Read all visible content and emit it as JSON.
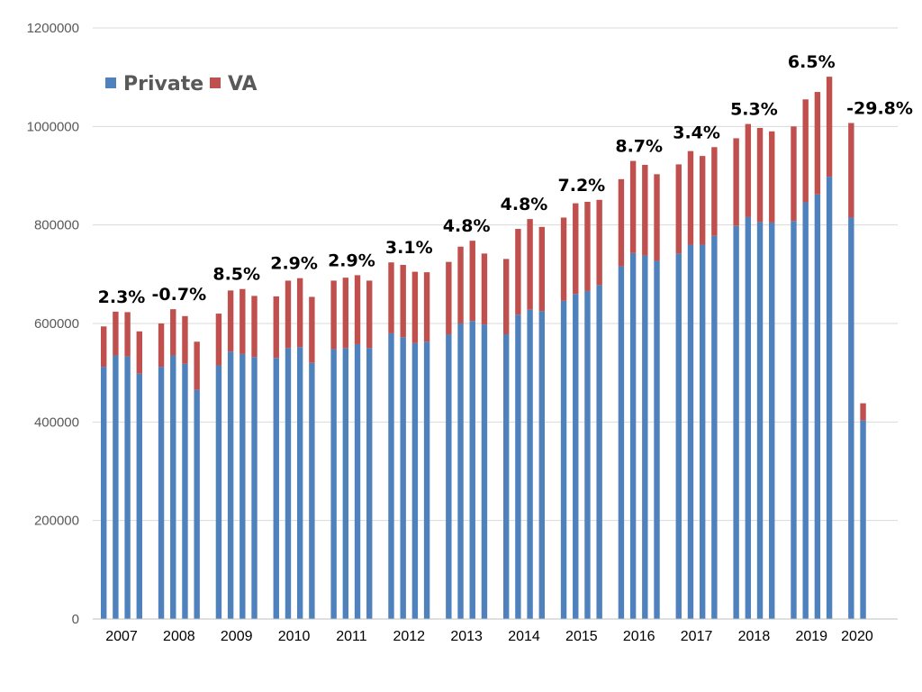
{
  "chart_data": {
    "type": "bar",
    "stacked": true,
    "title": "",
    "xlabel": "",
    "ylabel": "",
    "ylim": [
      0,
      1200000
    ],
    "yticks": [
      0,
      200000,
      400000,
      600000,
      800000,
      1000000,
      1200000
    ],
    "ytick_labels": [
      "0",
      "200000",
      "400000",
      "600000",
      "800000",
      "1000000",
      "1200000"
    ],
    "grid": true,
    "legend_position": "top-left",
    "series": [
      {
        "name": "Private",
        "color": "#4f81bd"
      },
      {
        "name": "VA",
        "color": "#c0504d"
      }
    ],
    "groups": [
      {
        "year": "2007",
        "change_label": "2.3%",
        "private": [
          512000,
          535000,
          533000,
          498000
        ],
        "va": [
          82000,
          89000,
          90000,
          86000
        ]
      },
      {
        "year": "2008",
        "change_label": "-0.7%",
        "private": [
          512000,
          535000,
          518000,
          465000
        ],
        "va": [
          88000,
          94000,
          97000,
          98000
        ]
      },
      {
        "year": "2009",
        "change_label": "8.5%",
        "private": [
          515000,
          543000,
          538000,
          532000
        ],
        "va": [
          105000,
          124000,
          132000,
          124000
        ]
      },
      {
        "year": "2010",
        "change_label": "2.9%",
        "private": [
          530000,
          550000,
          552000,
          520000
        ],
        "va": [
          125000,
          137000,
          140000,
          134000
        ]
      },
      {
        "year": "2011",
        "change_label": "2.9%",
        "private": [
          548000,
          550000,
          558000,
          550000
        ],
        "va": [
          139000,
          143000,
          140000,
          137000
        ]
      },
      {
        "year": "2012",
        "change_label": "3.1%",
        "private": [
          580000,
          572000,
          560000,
          563000
        ],
        "va": [
          144000,
          147000,
          145000,
          141000
        ]
      },
      {
        "year": "2013",
        "change_label": "4.8%",
        "private": [
          578000,
          600000,
          605000,
          598000
        ],
        "va": [
          147000,
          156000,
          163000,
          144000
        ]
      },
      {
        "year": "2014",
        "change_label": "4.8%",
        "private": [
          578000,
          618000,
          628000,
          625000
        ],
        "va": [
          153000,
          174000,
          184000,
          171000
        ]
      },
      {
        "year": "2015",
        "change_label": "7.2%",
        "private": [
          646000,
          660000,
          666000,
          678000
        ],
        "va": [
          169000,
          184000,
          181000,
          173000
        ]
      },
      {
        "year": "2016",
        "change_label": "8.7%",
        "private": [
          716000,
          743000,
          738000,
          727000
        ],
        "va": [
          177000,
          187000,
          184000,
          176000
        ]
      },
      {
        "year": "2017",
        "change_label": "3.4%",
        "private": [
          742000,
          760000,
          760000,
          778000
        ],
        "va": [
          181000,
          190000,
          180000,
          180000
        ]
      },
      {
        "year": "2018",
        "change_label": "5.3%",
        "private": [
          798000,
          816000,
          806000,
          805000
        ],
        "va": [
          178000,
          189000,
          191000,
          185000
        ]
      },
      {
        "year": "2019",
        "change_label": "6.5%",
        "private": [
          808000,
          846000,
          862000,
          898000
        ],
        "va": [
          192000,
          209000,
          208000,
          203000
        ]
      },
      {
        "year": "2020",
        "change_label": "-29.8%",
        "private": [
          815000,
          403000
        ],
        "va": [
          192000,
          35000
        ]
      }
    ]
  }
}
